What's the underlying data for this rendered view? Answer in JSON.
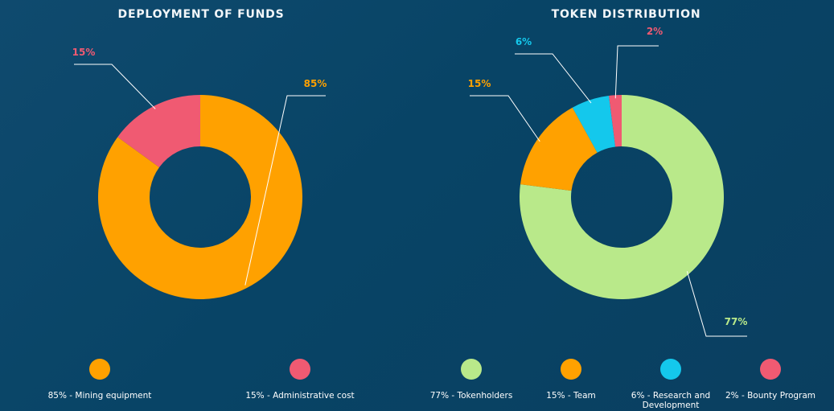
{
  "colors": {
    "background": "#0b4467",
    "orange": "#ffa100",
    "pink": "#f05a72",
    "green": "#b9e98a",
    "cyan": "#14c8ec",
    "callout_line": "#ffffff"
  },
  "chart_data": [
    {
      "type": "pie",
      "title": "DEPLOYMENT OF FUNDS",
      "donut": true,
      "slices": [
        {
          "label": "Mining equipment",
          "value": 85,
          "value_label": "85%",
          "color": "#ffa100",
          "legend": "85% - Mining equipment"
        },
        {
          "label": "Administrative cost",
          "value": 15,
          "value_label": "15%",
          "color": "#f05a72",
          "legend": "15% - Administrative cost"
        }
      ]
    },
    {
      "type": "pie",
      "title": "TOKEN DISTRIBUTION",
      "donut": true,
      "slices": [
        {
          "label": "Tokenholders",
          "value": 77,
          "value_label": "77%",
          "color": "#b9e98a",
          "legend": "77% - Tokenholders"
        },
        {
          "label": "Team",
          "value": 15,
          "value_label": "15%",
          "color": "#ffa100",
          "legend": "15% - Team"
        },
        {
          "label": "Research and Development",
          "value": 6,
          "value_label": "6%",
          "color": "#14c8ec",
          "legend": "6% - Research and Development"
        },
        {
          "label": "Bounty Program",
          "value": 2,
          "value_label": "2%",
          "color": "#f05a72",
          "legend": "2% - Bounty Program"
        }
      ]
    }
  ]
}
